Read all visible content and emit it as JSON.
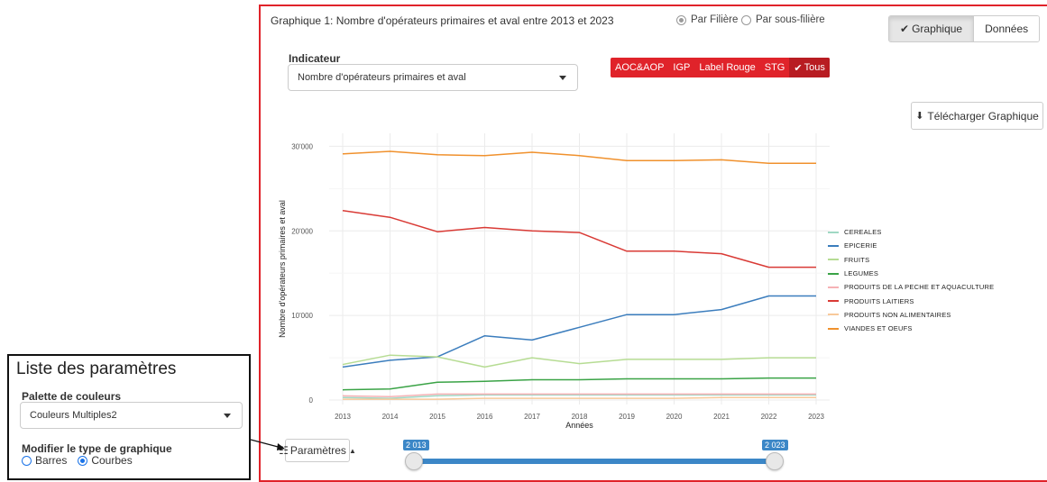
{
  "chart_title": "Graphique 1: Nombre d'opérateurs primaires et aval entre 2013 et 2023",
  "view_radio": {
    "options": [
      "Par Filière",
      "Par sous-filière"
    ],
    "selected": "Par Filière"
  },
  "view_toggle": {
    "graph_label": "Graphique",
    "data_label": "Données",
    "active": "Graphique"
  },
  "indicator": {
    "label": "Indicateur",
    "value": "Nombre d'opérateurs primaires et aval"
  },
  "sign_filter": {
    "items": [
      "AOC&AOP",
      "IGP",
      "Label Rouge",
      "STG",
      "Tous"
    ],
    "active": "Tous",
    "color": "#e0232a"
  },
  "download_label": "Télécharger Graphique",
  "params_button_label": "Paramètres",
  "year_slider": {
    "min_label": "2 013",
    "max_label": "2 023",
    "min": 2013,
    "max": 2023
  },
  "param_panel": {
    "title": "Liste des paramètres",
    "palette_label": "Palette de couleurs",
    "palette_value": "Couleurs Multiples2",
    "chart_type_label": "Modifier le type de graphique",
    "chart_type_options": [
      "Barres",
      "Courbes"
    ],
    "chart_type_selected": "Courbes"
  },
  "chart_data": {
    "type": "line",
    "xlabel": "Années",
    "ylabel": "Nombre d'opérateurs primaires et aval",
    "x": [
      2013,
      2014,
      2015,
      2016,
      2017,
      2018,
      2019,
      2020,
      2021,
      2022,
      2023
    ],
    "y_ticks": [
      "0",
      "10'000",
      "20'000",
      "30'000"
    ],
    "ylim": [
      0,
      31000
    ],
    "grid": true,
    "legend_position": "right",
    "series": [
      {
        "name": "CEREALES",
        "color": "#9fd8c4",
        "values": [
          300,
          200,
          500,
          600,
          600,
          600,
          600,
          600,
          600,
          600,
          600
        ]
      },
      {
        "name": "EPICERIE",
        "color": "#3b7dbd",
        "values": [
          3900,
          4700,
          5100,
          7600,
          7100,
          8600,
          10100,
          10100,
          10700,
          12300,
          12300
        ]
      },
      {
        "name": "FRUITS",
        "color": "#b6dc93",
        "values": [
          4200,
          5300,
          5100,
          3900,
          5000,
          4300,
          4800,
          4800,
          4800,
          5000,
          5000
        ]
      },
      {
        "name": "LEGUMES",
        "color": "#3aa346",
        "values": [
          1200,
          1300,
          2100,
          2200,
          2400,
          2400,
          2500,
          2500,
          2500,
          2600,
          2600
        ]
      },
      {
        "name": "PRODUITS DE LA PECHE ET AQUACULTURE",
        "color": "#f6b2b5",
        "values": [
          500,
          400,
          700,
          700,
          700,
          700,
          700,
          700,
          700,
          700,
          700
        ]
      },
      {
        "name": "PRODUITS LAITIERS",
        "color": "#d93a35",
        "values": [
          22400,
          21600,
          19900,
          20400,
          20000,
          19800,
          17600,
          17600,
          17300,
          15700,
          15700
        ]
      },
      {
        "name": "PRODUITS NON ALIMENTAIRES",
        "color": "#f8c99a",
        "values": [
          100,
          100,
          100,
          200,
          200,
          200,
          200,
          200,
          300,
          300,
          300
        ]
      },
      {
        "name": "VIANDES ET OEUFS",
        "color": "#f0912d",
        "values": [
          29100,
          29400,
          29000,
          28900,
          29300,
          28900,
          28300,
          28300,
          28400,
          28000,
          28000
        ]
      }
    ]
  }
}
